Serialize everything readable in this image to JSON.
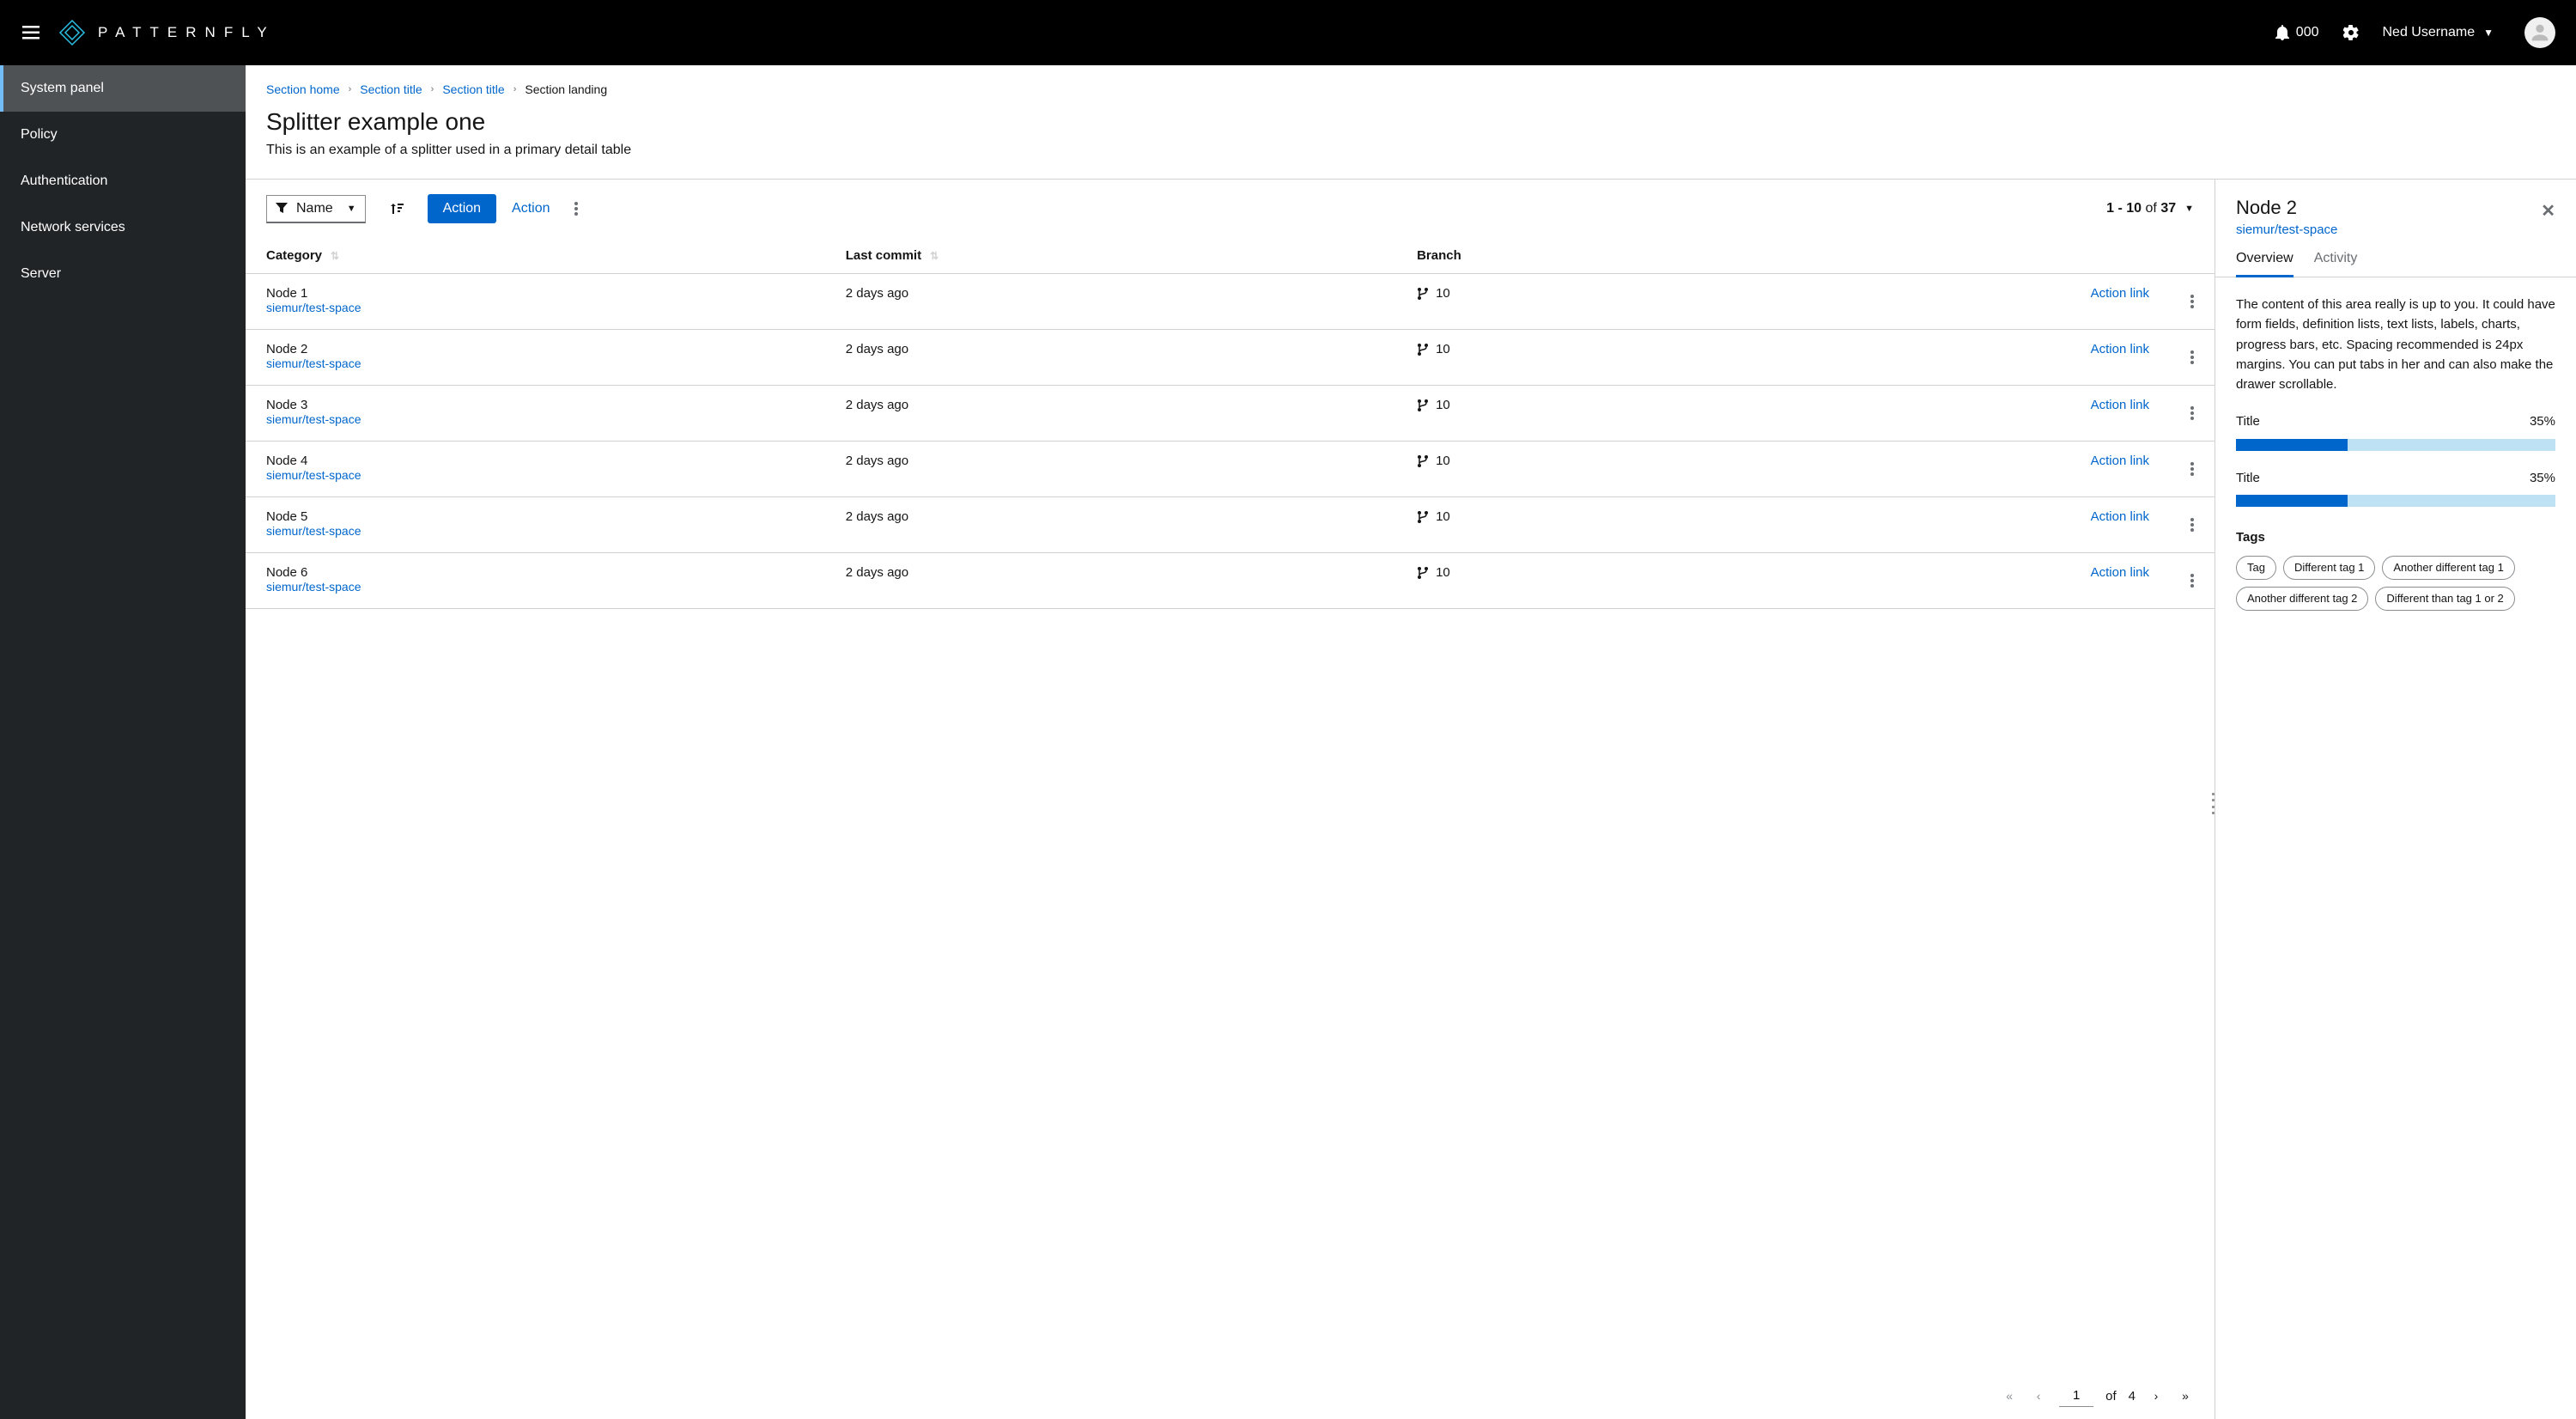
{
  "masthead": {
    "brand": "PATTERNFLY",
    "notification_count": "000",
    "username": "Ned Username"
  },
  "sidebar": {
    "items": [
      {
        "label": "System panel",
        "active": true
      },
      {
        "label": "Policy",
        "active": false
      },
      {
        "label": "Authentication",
        "active": false
      },
      {
        "label": "Network services",
        "active": false
      },
      {
        "label": "Server",
        "active": false
      }
    ]
  },
  "breadcrumbs": {
    "items": [
      {
        "label": "Section home",
        "link": true
      },
      {
        "label": "Section title",
        "link": true
      },
      {
        "label": "Section title",
        "link": true
      },
      {
        "label": "Section landing",
        "link": false
      }
    ]
  },
  "page": {
    "title": "Splitter example one",
    "description": "This is an example of a splitter used in a primary detail table"
  },
  "toolbar": {
    "filter_label": "Name",
    "primary_action": "Action",
    "secondary_action": "Action",
    "pagination_summary_prefix": "1 - 10",
    "pagination_summary_of": " of ",
    "pagination_summary_total": "37"
  },
  "table": {
    "columns": [
      {
        "label": "Category",
        "sortable": true
      },
      {
        "label": "Last commit",
        "sortable": true
      },
      {
        "label": "Branch",
        "sortable": false
      }
    ],
    "action_link_label": "Action link",
    "rows": [
      {
        "name": "Node 1",
        "sub": "siemur/test-space",
        "commit": "2 days ago",
        "branch": "10",
        "selected": false
      },
      {
        "name": "Node 2",
        "sub": "siemur/test-space",
        "commit": "2 days ago",
        "branch": "10",
        "selected": true
      },
      {
        "name": "Node 3",
        "sub": "siemur/test-space",
        "commit": "2 days ago",
        "branch": "10",
        "selected": false
      },
      {
        "name": "Node 4",
        "sub": "siemur/test-space",
        "commit": "2 days ago",
        "branch": "10",
        "selected": false
      },
      {
        "name": "Node 5",
        "sub": "siemur/test-space",
        "commit": "2 days ago",
        "branch": "10",
        "selected": false
      },
      {
        "name": "Node 6",
        "sub": "siemur/test-space",
        "commit": "2 days ago",
        "branch": "10",
        "selected": false
      }
    ]
  },
  "pagination": {
    "current_page": "1",
    "of_label": "of",
    "total_pages": "4"
  },
  "drawer": {
    "title": "Node 2",
    "subtitle": "siemur/test-space",
    "tabs": [
      {
        "label": "Overview",
        "active": true
      },
      {
        "label": "Activity",
        "active": false
      }
    ],
    "body_text": "The content of this area really is up to you. It could have form fields, definition lists, text lists, labels, charts, progress bars, etc. Spacing recommended is 24px margins. You can put tabs in her and can also make the drawer scrollable.",
    "progress": [
      {
        "title": "Title",
        "value_label": "35%",
        "value_pct": 35
      },
      {
        "title": "Title",
        "value_label": "35%",
        "value_pct": 35
      }
    ],
    "tags_label": "Tags",
    "tags": [
      "Tag",
      "Different tag 1",
      "Another different tag 1",
      "Another different tag 2",
      "Different than tag 1 or 2"
    ]
  },
  "colors": {
    "primary": "#0066cc",
    "progress_track": "#bee1f4",
    "sidebar_bg": "#212427",
    "sidebar_active_bg": "#4f5255",
    "sidebar_active_border": "#73bcf7"
  }
}
